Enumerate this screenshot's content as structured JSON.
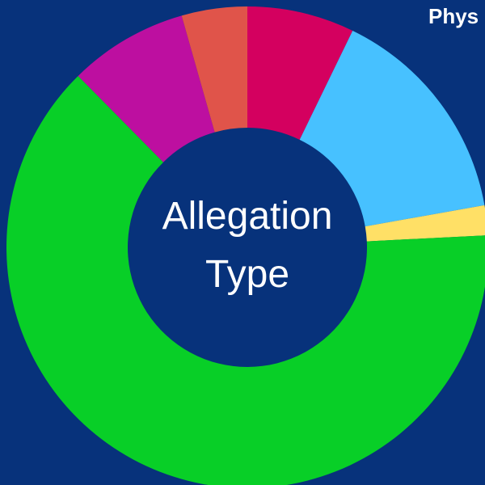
{
  "chart_data": {
    "type": "donut",
    "title": "Allegation Type",
    "annotation": "Phys",
    "categories": [
      null,
      null,
      null,
      null,
      null,
      null
    ],
    "values": [
      7.2,
      15,
      2,
      63.4,
      8,
      4.4
    ],
    "colors": [
      "#d4005f",
      "#47c1ff",
      "#ffe066",
      "#08cf27",
      "#bd0fa0",
      "#e0544a"
    ]
  }
}
